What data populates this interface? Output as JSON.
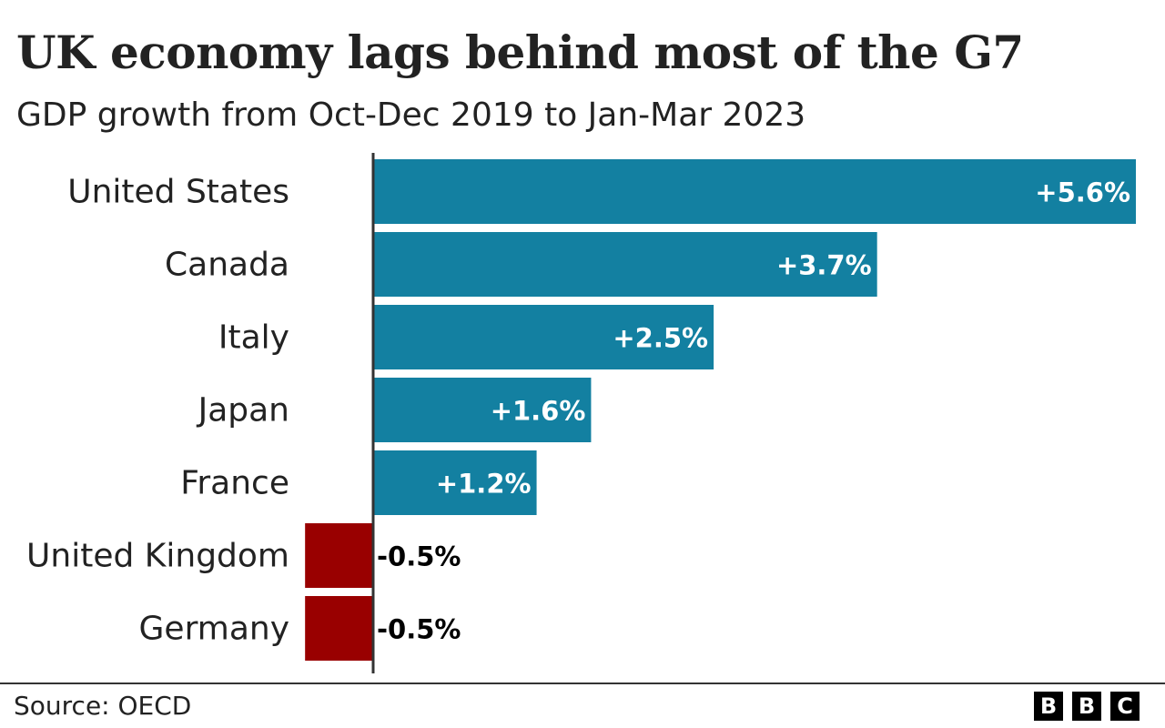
{
  "chart_data": {
    "type": "bar",
    "orientation": "horizontal",
    "title": "UK economy lags behind most of the G7",
    "subtitle": "GDP growth from Oct-Dec 2019 to Jan-Mar 2023",
    "categories": [
      "United States",
      "Canada",
      "Italy",
      "Japan",
      "France",
      "United Kingdom",
      "Germany"
    ],
    "values": [
      5.6,
      3.7,
      2.5,
      1.6,
      1.2,
      -0.5,
      -0.5
    ],
    "data_labels": [
      "+5.6%",
      "+3.7%",
      "+2.5%",
      "+1.6%",
      "+1.2%",
      "-0.5%",
      "-0.5%"
    ],
    "xlabel": "",
    "ylabel": "",
    "xlim": [
      -0.5,
      5.6
    ],
    "grid": false,
    "colors": {
      "positive": "#1380A1",
      "negative": "#990000",
      "axis": "#333333"
    }
  },
  "footer": {
    "source": "Source: OECD",
    "logo_letters": [
      "B",
      "B",
      "C"
    ]
  }
}
